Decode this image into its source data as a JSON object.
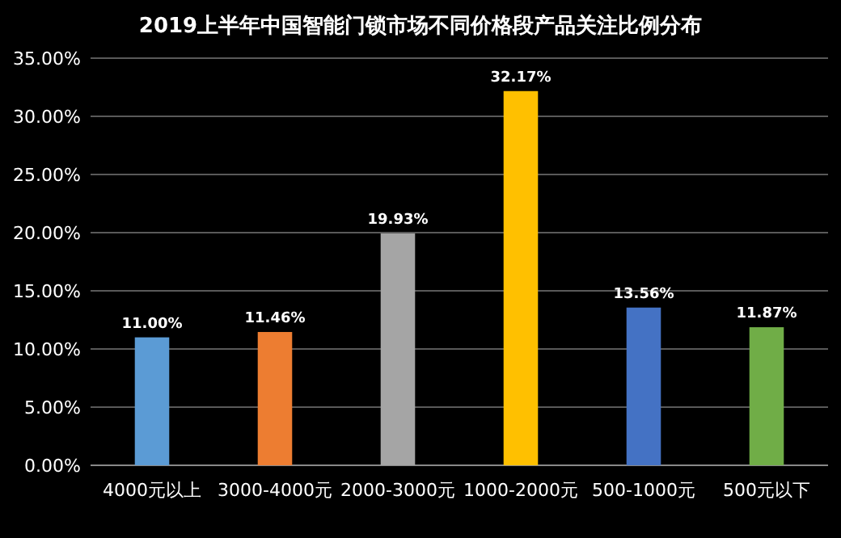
{
  "chart_data": {
    "type": "bar",
    "title": "2019上半年中国智能门锁市场不同价格段产品关注比例分布",
    "categories": [
      "4000元以上",
      "3000-4000元",
      "2000-3000元",
      "1000-2000元",
      "500-1000元",
      "500元以下"
    ],
    "values": [
      11.0,
      11.46,
      19.93,
      32.17,
      13.56,
      11.87
    ],
    "colors": [
      "#5b9bd5",
      "#ed7d31",
      "#a5a5a5",
      "#ffc000",
      "#4472c4",
      "#70ad47"
    ],
    "value_labels": [
      "11.00%",
      "11.46%",
      "19.93%",
      "32.17%",
      "13.56%",
      "11.87%"
    ],
    "ylim": [
      0,
      35
    ],
    "yticks": [
      {
        "value": 0,
        "label": "0.00%"
      },
      {
        "value": 5,
        "label": "5.00%"
      },
      {
        "value": 10,
        "label": "10.00%"
      },
      {
        "value": 15,
        "label": "15.00%"
      },
      {
        "value": 20,
        "label": "20.00%"
      },
      {
        "value": 25,
        "label": "25.00%"
      },
      {
        "value": 30,
        "label": "30.00%"
      },
      {
        "value": 35,
        "label": "35.00%"
      }
    ],
    "grid": "y"
  }
}
